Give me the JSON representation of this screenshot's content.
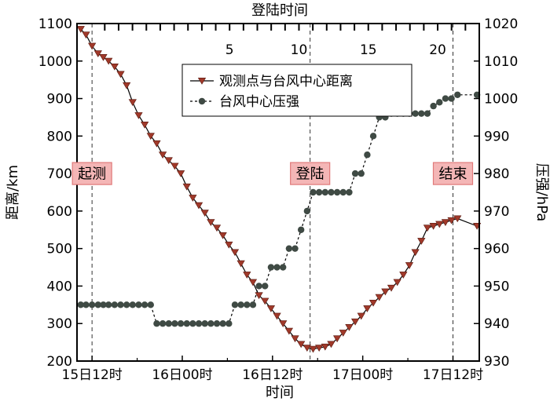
{
  "chart_data": {
    "type": "line",
    "top_axis": {
      "title": "登陆时间",
      "ticks": [
        "5",
        "10",
        "15",
        "20"
      ],
      "tick_values": [
        5,
        10,
        15,
        20
      ],
      "range": [
        -6,
        23
      ]
    },
    "x_axis": {
      "title": "时间",
      "ticks": [
        "15日12时",
        "16日00时",
        "16日12时",
        "17日00时",
        "17日12时"
      ],
      "tick_values": [
        12,
        24,
        36,
        48,
        60
      ],
      "range": [
        10,
        63.5
      ]
    },
    "y_left": {
      "title": "距离/km",
      "ticks": [
        "200",
        "300",
        "400",
        "500",
        "600",
        "700",
        "800",
        "900",
        "1000",
        "1100"
      ],
      "range": [
        200,
        1100
      ]
    },
    "y_right": {
      "title": "压强/hPa",
      "ticks": [
        "930",
        "940",
        "950",
        "960",
        "970",
        "980",
        "990",
        "1000",
        "1010",
        "1020"
      ],
      "range": [
        930,
        1020
      ]
    },
    "legend": {
      "position": "top-center",
      "items": [
        "观测点与台风中心距离",
        "台风中心压强"
      ]
    },
    "annotations": [
      {
        "label": "起测",
        "x": 12,
        "y": 700
      },
      {
        "label": "登陆",
        "x": 41,
        "y": 700
      },
      {
        "label": "结束",
        "x": 60,
        "y": 700
      }
    ],
    "vlines": [
      12,
      41,
      60
    ],
    "series": [
      {
        "name": "观测点与台风中心距离",
        "axis": "left",
        "color": "#a0392a",
        "marker": "triangle-down",
        "x": [
          10.5,
          11.2,
          12,
          12.8,
          13.5,
          14.2,
          15,
          15.8,
          16.6,
          17.4,
          18.2,
          19,
          19.8,
          20.6,
          21.4,
          22.2,
          23,
          23.8,
          24.6,
          25.4,
          26.2,
          27,
          27.8,
          28.6,
          29.4,
          30.2,
          31,
          31.8,
          32.6,
          33.4,
          34.2,
          35,
          35.8,
          36.6,
          37.4,
          38.2,
          39,
          39.8,
          40.6,
          41.4,
          42.2,
          43,
          43.8,
          44.6,
          45.4,
          46.2,
          47,
          47.8,
          48.6,
          49.4,
          50.2,
          51,
          51.8,
          52.6,
          53.4,
          54.2,
          55,
          55.8,
          56.6,
          57.4,
          58.2,
          59,
          59.8,
          60.6,
          63.2
        ],
        "values": [
          1085,
          1070,
          1040,
          1020,
          1010,
          1000,
          985,
          965,
          935,
          890,
          855,
          830,
          800,
          780,
          750,
          735,
          720,
          700,
          665,
          635,
          615,
          595,
          570,
          555,
          535,
          510,
          490,
          460,
          430,
          410,
          375,
          360,
          340,
          320,
          300,
          280,
          260,
          245,
          235,
          232,
          235,
          238,
          245,
          260,
          275,
          290,
          305,
          320,
          340,
          355,
          370,
          385,
          395,
          410,
          430,
          455,
          490,
          520,
          555,
          560,
          565,
          570,
          575,
          580,
          560
        ]
      },
      {
        "name": "台风中心压强",
        "axis": "right",
        "color": "#3f4a44",
        "marker": "circle",
        "x": [
          10.5,
          11.2,
          12,
          12.8,
          13.5,
          14.2,
          15,
          15.8,
          16.6,
          17.4,
          18.2,
          19,
          19.8,
          20.6,
          21.4,
          22.2,
          23,
          23.8,
          24.6,
          25.4,
          26.2,
          27,
          27.8,
          28.6,
          29.4,
          30.2,
          31,
          31.8,
          32.6,
          33.4,
          34.2,
          35,
          35.8,
          36.6,
          37.4,
          38.2,
          39,
          39.8,
          40.6,
          41.4,
          42.2,
          43,
          43.8,
          44.6,
          45.4,
          46.2,
          47,
          47.8,
          48.6,
          49.4,
          50.2,
          51,
          51.8,
          52.6,
          53.4,
          54.2,
          55,
          55.8,
          56.6,
          57.4,
          58.2,
          59,
          59.8,
          60.6,
          63.2
        ],
        "values": [
          945,
          945,
          945,
          945,
          945,
          945,
          945,
          945,
          945,
          945,
          945,
          945,
          945,
          940,
          940,
          940,
          940,
          940,
          940,
          940,
          940,
          940,
          940,
          940,
          940,
          940,
          945,
          945,
          945,
          945,
          950,
          950,
          955,
          955,
          955,
          960,
          960,
          965,
          970,
          975,
          975,
          975,
          975,
          975,
          975,
          975,
          980,
          980,
          985,
          990,
          995,
          995,
          996,
          996,
          996,
          996,
          996,
          996,
          996,
          998,
          999,
          1000,
          1000,
          1001,
          1001
        ]
      }
    ]
  }
}
